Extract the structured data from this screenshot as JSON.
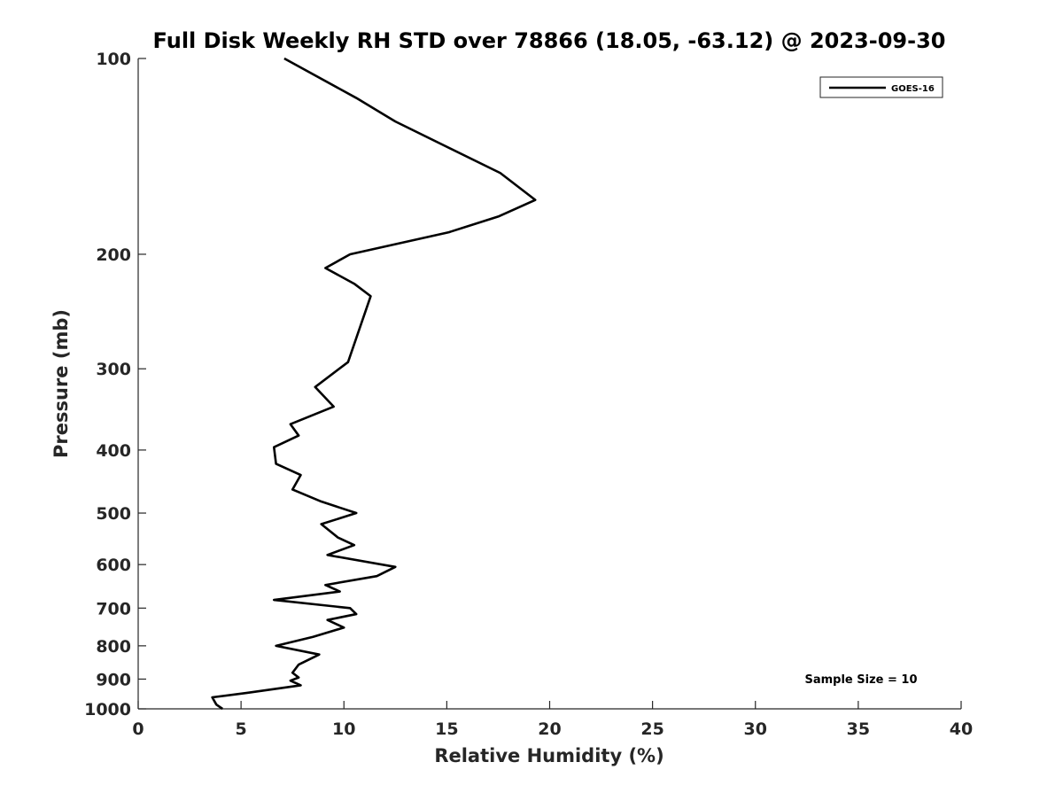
{
  "chart_data": {
    "type": "line",
    "title": "Full Disk Weekly RH STD over 78866 (18.05, -63.12) @ 2023-09-30",
    "xlabel": "Relative Humidity (%)",
    "ylabel": "Pressure (mb)",
    "xlim": [
      0,
      40
    ],
    "ylim": [
      100,
      1000
    ],
    "y_scale": "log",
    "y_reversed": true,
    "x_ticks": [
      0,
      5,
      10,
      15,
      20,
      25,
      30,
      35,
      40
    ],
    "y_ticks": [
      100,
      200,
      300,
      400,
      500,
      600,
      700,
      800,
      900,
      1000
    ],
    "grid": false,
    "legend_position": "top-right",
    "annotation": "Sample Size = 10",
    "series": [
      {
        "name": "GOES-16",
        "color": "#000000",
        "points": [
          [
            7.1,
            100
          ],
          [
            10.6,
            115
          ],
          [
            12.5,
            125
          ],
          [
            17.6,
            150
          ],
          [
            19.3,
            165
          ],
          [
            17.5,
            175
          ],
          [
            15.1,
            185
          ],
          [
            10.3,
            200
          ],
          [
            9.1,
            210
          ],
          [
            10.5,
            222
          ],
          [
            11.3,
            232
          ],
          [
            10.2,
            293
          ],
          [
            8.6,
            320
          ],
          [
            9.5,
            343
          ],
          [
            7.4,
            365
          ],
          [
            7.8,
            380
          ],
          [
            6.6,
            396
          ],
          [
            6.7,
            420
          ],
          [
            7.9,
            437
          ],
          [
            7.5,
            460
          ],
          [
            8.9,
            480
          ],
          [
            10.6,
            500
          ],
          [
            8.9,
            520
          ],
          [
            9.7,
            545
          ],
          [
            10.5,
            560
          ],
          [
            9.2,
            580
          ],
          [
            12.5,
            605
          ],
          [
            11.6,
            625
          ],
          [
            9.1,
            645
          ],
          [
            9.8,
            660
          ],
          [
            6.6,
            680
          ],
          [
            10.3,
            700
          ],
          [
            10.6,
            715
          ],
          [
            9.2,
            730
          ],
          [
            10.0,
            750
          ],
          [
            8.5,
            775
          ],
          [
            6.7,
            800
          ],
          [
            8.8,
            825
          ],
          [
            7.8,
            855
          ],
          [
            7.5,
            880
          ],
          [
            7.8,
            895
          ],
          [
            7.4,
            905
          ],
          [
            7.9,
            920
          ],
          [
            5.3,
            945
          ],
          [
            3.6,
            960
          ],
          [
            3.8,
            985
          ],
          [
            4.1,
            1000
          ]
        ]
      }
    ]
  }
}
